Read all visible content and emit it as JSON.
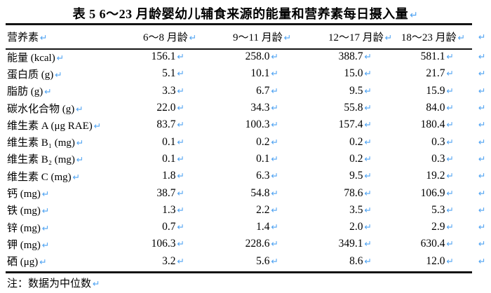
{
  "title": "表 5  6～23 月龄婴幼儿辅食来源的能量和营养素每日摄入量",
  "marks": {
    "glyph": "↵",
    "color": "#4fa3f2",
    "meaning": "paragraph-return-mark"
  },
  "table": {
    "columns": [
      "营养素",
      "6～8 月龄",
      "9～11 月龄",
      "12～17 月龄",
      "18～23 月龄"
    ],
    "rows": [
      {
        "label": "能量 (kcal)",
        "values": [
          "156.1",
          "258.0",
          "388.7",
          "581.1"
        ]
      },
      {
        "label": "蛋白质 (g)",
        "values": [
          "5.1",
          "10.1",
          "15.0",
          "21.7"
        ]
      },
      {
        "label": "脂肪 (g)",
        "values": [
          "3.3",
          "6.7",
          "9.5",
          "15.9"
        ]
      },
      {
        "label": "碳水化合物 (g)",
        "values": [
          "22.0",
          "34.3",
          "55.8",
          "84.0"
        ]
      },
      {
        "label": "维生素 A (μg RAE)",
        "values": [
          "83.7",
          "100.3",
          "157.4",
          "180.4"
        ]
      },
      {
        "label": "维生素 B₁ (mg)",
        "values": [
          "0.1",
          "0.2",
          "0.2",
          "0.3"
        ]
      },
      {
        "label": "维生素 B₂ (mg)",
        "values": [
          "0.1",
          "0.1",
          "0.2",
          "0.3"
        ]
      },
      {
        "label": "维生素 C (mg)",
        "values": [
          "1.8",
          "6.3",
          "9.5",
          "19.2"
        ]
      },
      {
        "label": "钙 (mg)",
        "values": [
          "38.7",
          "54.8",
          "78.6",
          "106.9"
        ]
      },
      {
        "label": "铁 (mg)",
        "values": [
          "1.3",
          "2.2",
          "3.5",
          "5.3"
        ]
      },
      {
        "label": "锌 (mg)",
        "values": [
          "0.7",
          "1.4",
          "2.0",
          "2.9"
        ]
      },
      {
        "label": "钾 (mg)",
        "values": [
          "106.3",
          "228.6",
          "349.1",
          "630.4"
        ]
      },
      {
        "label": "硒 (μg)",
        "values": [
          "3.2",
          "5.6",
          "8.6",
          "12.0"
        ]
      }
    ]
  },
  "note": "注：数据为中位数"
}
